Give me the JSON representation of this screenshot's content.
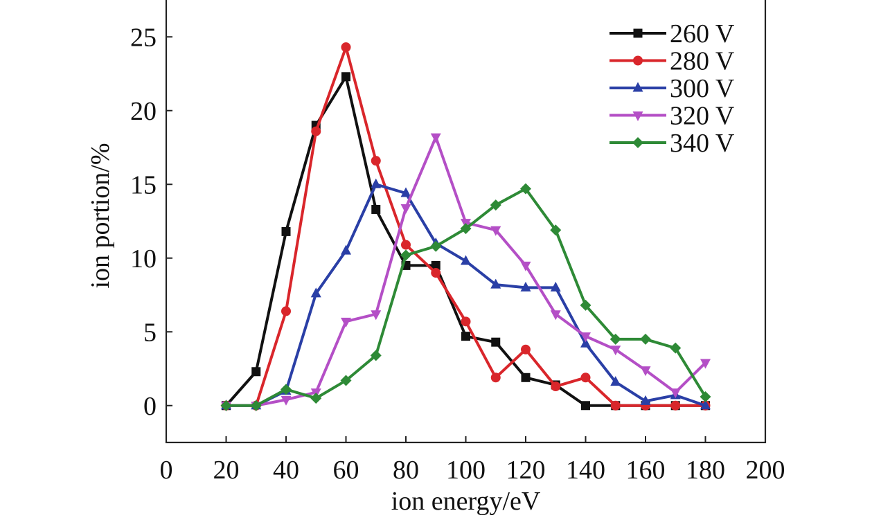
{
  "chart_data": {
    "type": "line",
    "xlabel": "ion energy/eV",
    "ylabel": "ion portion/%",
    "xlim": [
      0,
      200
    ],
    "ylim": [
      -2.5,
      27.5
    ],
    "xticks": [
      0,
      20,
      40,
      60,
      80,
      100,
      120,
      140,
      160,
      180,
      200
    ],
    "yticks": [
      0,
      5,
      10,
      15,
      20,
      25
    ],
    "x": [
      20,
      30,
      40,
      50,
      60,
      70,
      80,
      90,
      100,
      110,
      120,
      130,
      140,
      150,
      160,
      170,
      180
    ],
    "legend_position": "top-right",
    "grid": false,
    "series": [
      {
        "name": "260 V",
        "color": "#111111",
        "marker": "square",
        "values": [
          0,
          2.3,
          11.8,
          19.0,
          22.3,
          13.3,
          9.5,
          9.5,
          4.7,
          4.3,
          1.9,
          1.4,
          0,
          0,
          0,
          0,
          0
        ]
      },
      {
        "name": "280 V",
        "color": "#d9262b",
        "marker": "circle",
        "values": [
          0,
          0,
          6.4,
          18.6,
          24.3,
          16.6,
          10.9,
          9.0,
          5.7,
          1.9,
          3.8,
          1.3,
          1.9,
          0,
          0,
          0,
          0
        ]
      },
      {
        "name": "300 V",
        "color": "#2a3fa6",
        "marker": "triangle-up",
        "values": [
          0,
          0,
          1.0,
          7.6,
          10.5,
          15.0,
          14.4,
          11.0,
          9.8,
          8.2,
          8.0,
          8.0,
          4.2,
          1.6,
          0.3,
          0.7,
          0
        ]
      },
      {
        "name": "320 V",
        "color": "#b44fc6",
        "marker": "triangle-down",
        "values": [
          0,
          0,
          0.4,
          0.9,
          5.7,
          6.2,
          13.4,
          18.2,
          12.4,
          11.9,
          9.5,
          6.2,
          4.7,
          3.8,
          2.4,
          0.9,
          2.9
        ]
      },
      {
        "name": "340 V",
        "color": "#2e8a36",
        "marker": "diamond",
        "values": [
          0,
          0,
          1.1,
          0.5,
          1.7,
          3.4,
          10.2,
          10.8,
          12.0,
          13.6,
          14.7,
          11.9,
          6.8,
          4.5,
          4.5,
          3.9,
          0.6
        ]
      }
    ]
  }
}
